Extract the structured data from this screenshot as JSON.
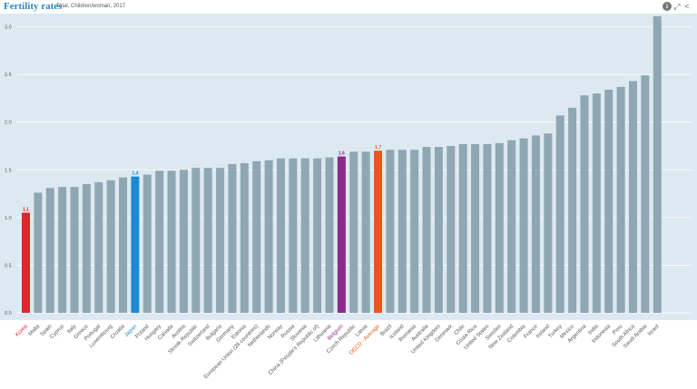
{
  "header": {
    "title": "Fertility rates",
    "subtitle": "Total, Children/woman, 2017",
    "info_icon": "info-icon",
    "expand_icon": "expand-icon",
    "share_icon": "share-icon"
  },
  "colors": {
    "default_bar": "#8fa7b2",
    "highlight_red": "#e0262b",
    "highlight_blue": "#1b8bd1",
    "highlight_purple": "#8c2a8c",
    "highlight_orange": "#e05a1e",
    "plot_background": "#dde9f0",
    "axis_text": "#555555"
  },
  "chart_data": {
    "type": "bar",
    "title": "Fertility rates",
    "subtitle": "Total, Children/woman, 2017",
    "ylim": [
      0,
      3.1
    ],
    "yticks": [
      "0.0",
      "0.5",
      "1.0",
      "1.5",
      "2.0",
      "2.5",
      "3.0"
    ],
    "grid": true,
    "categories": [
      "Korea",
      "Malta",
      "Spain",
      "Cyprus",
      "Italy",
      "Greece",
      "Portugal",
      "Luxembourg",
      "Croatia",
      "Japan",
      "Poland",
      "Hungary",
      "Canada",
      "Austria",
      "Slovak Republic",
      "Switzerland",
      "Bulgaria",
      "Germany",
      "Estonia",
      "European Union (28 countries)",
      "Netherlands",
      "Norway",
      "Russia",
      "Slovenia",
      "China (People's Republic of)",
      "Lithuania",
      "Belgium",
      "Czech Republic",
      "Latvia",
      "OECD - Average",
      "Brazil",
      "Iceland",
      "Romania",
      "Australia",
      "United Kingdom",
      "Denmark",
      "Chile",
      "Costa Rica",
      "United States",
      "Sweden",
      "New Zealand",
      "Colombia",
      "France",
      "Ireland",
      "Turkey",
      "Mexico",
      "Argentina",
      "India",
      "Indonesia",
      "Peru",
      "South Africa",
      "Saudi Arabia",
      "Israel"
    ],
    "values": [
      1.05,
      1.26,
      1.31,
      1.32,
      1.32,
      1.35,
      1.37,
      1.39,
      1.42,
      1.43,
      1.45,
      1.49,
      1.49,
      1.5,
      1.52,
      1.52,
      1.52,
      1.56,
      1.57,
      1.59,
      1.6,
      1.62,
      1.62,
      1.62,
      1.62,
      1.63,
      1.64,
      1.69,
      1.69,
      1.7,
      1.71,
      1.71,
      1.71,
      1.74,
      1.74,
      1.75,
      1.77,
      1.77,
      1.77,
      1.78,
      1.81,
      1.83,
      1.86,
      1.88,
      2.07,
      2.15,
      2.28,
      2.3,
      2.34,
      2.37,
      2.43,
      2.49,
      3.11
    ],
    "highlights": {
      "Korea": {
        "color": "highlight_red",
        "label": "1.1"
      },
      "Japan": {
        "color": "highlight_blue",
        "label": "1.4"
      },
      "Belgium": {
        "color": "highlight_purple",
        "label": "1.6"
      },
      "OECD - Average": {
        "color": "highlight_orange",
        "label": "1.7"
      }
    }
  }
}
